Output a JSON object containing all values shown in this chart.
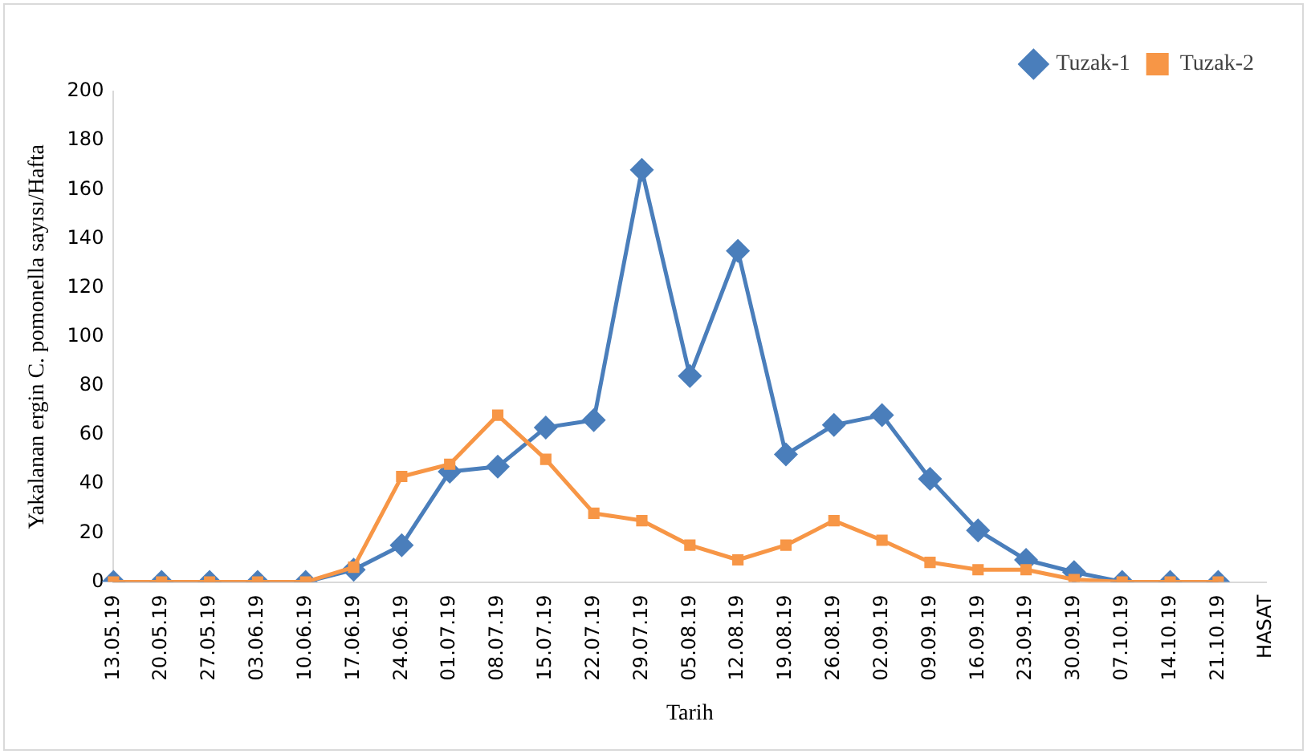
{
  "chart_data": {
    "type": "line",
    "xlabel": "Tarih",
    "ylabel": "Yakalanan ergin C. pomonella sayısı/Hafta",
    "categories": [
      "13.05.19",
      "20.05.19",
      "27.05.19",
      "03.06.19",
      "10.06.19",
      "17.06.19",
      "24.06.19",
      "01.07.19",
      "08.07.19",
      "15.07.19",
      "22.07.19",
      "29.07.19",
      "05.08.19",
      "12.08.19",
      "19.08.19",
      "26.08.19",
      "02.09.19",
      "09.09.19",
      "16.09.19",
      "23.09.19",
      "30.09.19",
      "07.10.19",
      "14.10.19",
      "21.10.19",
      "HASAT"
    ],
    "series": [
      {
        "name": "Tuzak-1",
        "color": "#4a7ebb",
        "marker": "diamond",
        "values": [
          0,
          0,
          0,
          0,
          0,
          5,
          15,
          45,
          47,
          63,
          66,
          168,
          84,
          135,
          52,
          64,
          68,
          42,
          21,
          9,
          4,
          0,
          0,
          0,
          null
        ]
      },
      {
        "name": "Tuzak-2",
        "color": "#f79646",
        "marker": "square",
        "values": [
          0,
          0,
          0,
          0,
          0,
          6,
          43,
          48,
          68,
          50,
          28,
          25,
          15,
          9,
          15,
          25,
          17,
          8,
          5,
          5,
          1,
          0,
          0,
          0,
          null
        ]
      }
    ],
    "ylim": [
      0,
      200
    ],
    "yticks": [
      0,
      20,
      40,
      60,
      80,
      100,
      120,
      140,
      160,
      180,
      200
    ],
    "grid": false,
    "legend": "top right"
  }
}
